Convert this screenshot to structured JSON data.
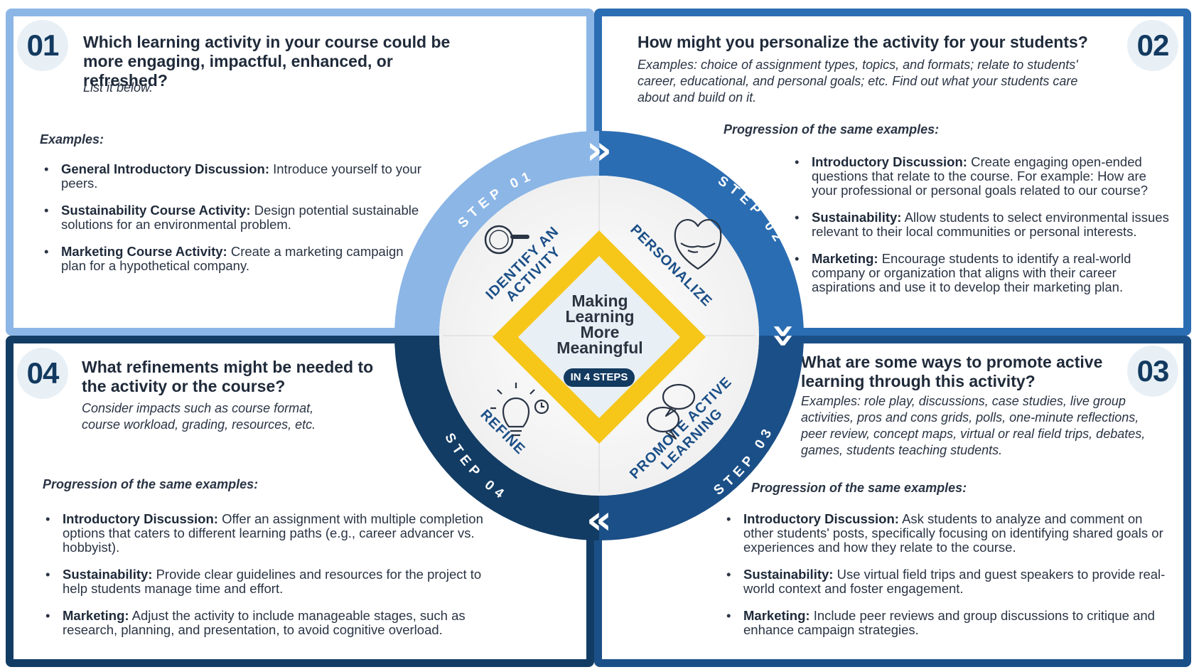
{
  "steps": [
    {
      "number": "01",
      "question": "Which learning activity in your course could be more engaging, impactful, enhanced, or refreshed?",
      "subtext": "List it below.",
      "examples_label": "Examples:",
      "items": [
        {
          "title": "General Introductory Discussion:",
          "text": "Introduce yourself to your peers."
        },
        {
          "title": "Sustainability Course Activity:",
          "text": "Design potential sustainable solutions for an environmental problem."
        },
        {
          "title": "Marketing Course Activity:",
          "text": "Create a marketing campaign plan for a hypothetical company."
        }
      ]
    },
    {
      "number": "02",
      "question": "How might you personalize the activity for your students?",
      "subtext": "Examples: choice of assignment types, topics, and formats; relate to students' career, educational, and personal goals; etc. Find out what your students care about and build on it.",
      "examples_label": "Progression of the same examples:",
      "items": [
        {
          "title": "Introductory Discussion:",
          "text": "Create engaging open-ended questions that relate to the course. For example: How are your professional or personal goals related to our course?"
        },
        {
          "title": "Sustainability:",
          "text": "Allow students to select environmental issues relevant to their local communities or personal interests."
        },
        {
          "title": "Marketing:",
          "text": "Encourage students to identify a real-world company or organization that aligns with their career aspirations and use it to develop their marketing plan."
        }
      ]
    },
    {
      "number": "03",
      "question": "What are some ways to promote active learning through this activity?",
      "subtext": "Examples: role play, discussions, case studies, live group activities, pros and cons grids, polls, one-minute reflections, peer review, concept maps, virtual or real field trips, debates, games, students teaching students.",
      "examples_label": "Progression of the same examples:",
      "items": [
        {
          "title": "Introductory Discussion:",
          "text": " Ask students to analyze and comment on other students' posts, specifically focusing on identifying shared goals or experiences and how they relate to the course."
        },
        {
          "title": "Sustainability:",
          "text": "Use virtual field trips and guest speakers to provide real-world context and foster engagement."
        },
        {
          "title": "Marketing:",
          "text": "Include peer reviews and group discussions to critique and enhance campaign strategies."
        }
      ]
    },
    {
      "number": "04",
      "question": "What refinements might be needed to the activity or the course?",
      "subtext": "Consider impacts such as course format, course workload, grading, resources, etc.",
      "examples_label": "Progression of the same examples:",
      "items": [
        {
          "title": "Introductory Discussion:",
          "text": "Offer an assignment with multiple completion options that caters to different learning paths (e.g., career advancer vs. hobbyist)."
        },
        {
          "title": "Sustainability:",
          "text": "Provide clear guidelines and resources for the project to help students manage time and effort."
        },
        {
          "title": "Marketing:",
          "text": "Adjust the activity to include manageable stages, such as research, planning, and presentation, to avoid cognitive overload."
        }
      ]
    }
  ],
  "wheel": {
    "step_labels": [
      "STEP 01",
      "STEP 02",
      "STEP 03",
      "STEP 04"
    ],
    "phase_labels": [
      "IDENTIFY AN",
      "ACTIVITY",
      "PERSONALIZE",
      "PROMOTE ACTIVE",
      "LEARNING",
      "REFINE"
    ],
    "center_title": [
      "Making",
      "Learning",
      "More",
      "Meaningful"
    ],
    "center_badge": "IN 4 STEPS",
    "icons": [
      "magnifier-icon",
      "heart-hands-icon",
      "speech-bubbles-icon",
      "lightbulb-icon"
    ],
    "arrow_glyphs": [
      "»",
      "»",
      "«"
    ]
  },
  "colors": {
    "step1": "#8cb6e6",
    "step2": "#2b6db2",
    "step3": "#1b4f87",
    "step4": "#123c64",
    "diamond": "#f6c619",
    "diamond_inner": "#e8f0f6",
    "text_dark": "#1f2a3a"
  }
}
